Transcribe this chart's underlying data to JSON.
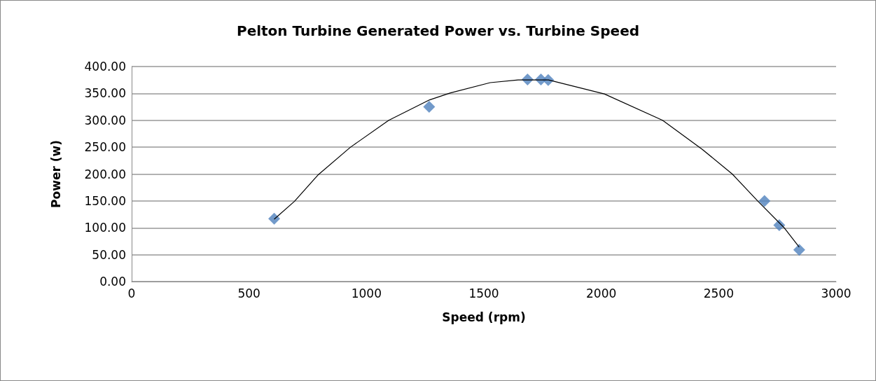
{
  "chart_data": {
    "type": "scatter",
    "title": "Pelton Turbine Generated Power vs. Turbine Speed",
    "xlabel": "Speed (rpm)",
    "ylabel": "Power (w)",
    "series": [
      {
        "color": "#4f81bd",
        "marker": "diamond",
        "x": [
          607,
          1267,
          1686,
          1743,
          1774,
          2695,
          2758,
          2843
        ],
        "values": [
          117,
          325,
          376,
          376,
          375,
          150,
          105,
          59
        ]
      },
      {
        "type": "line",
        "color": "#000000",
        "marker": "none",
        "x": [
          607,
          693,
          793,
          932,
          1095,
          1269,
          1358,
          1527,
          1646,
          1775,
          2013,
          2261,
          2430,
          2558,
          2668,
          2777,
          2843
        ],
        "values": [
          116,
          149,
          198,
          250,
          300,
          338,
          351,
          370,
          375,
          375,
          349,
          300,
          246,
          200,
          149,
          101,
          64
        ]
      }
    ],
    "xlim": [
      0,
      3000
    ],
    "xticks": [
      0,
      500,
      1000,
      1500,
      2000,
      2500,
      3000
    ],
    "ylim": [
      0,
      400
    ],
    "yticks": [
      {
        "value": 0,
        "label": "0.00"
      },
      {
        "value": 50,
        "label": "50.00"
      },
      {
        "value": 100,
        "label": "100.00"
      },
      {
        "value": 150,
        "label": "150.00"
      },
      {
        "value": 200,
        "label": "200.00"
      },
      {
        "value": 250,
        "label": "250.00"
      },
      {
        "value": 300,
        "label": "300.00"
      },
      {
        "value": 350,
        "label": "350.00"
      },
      {
        "value": 400,
        "label": "400.00"
      }
    ],
    "grid": "y"
  }
}
